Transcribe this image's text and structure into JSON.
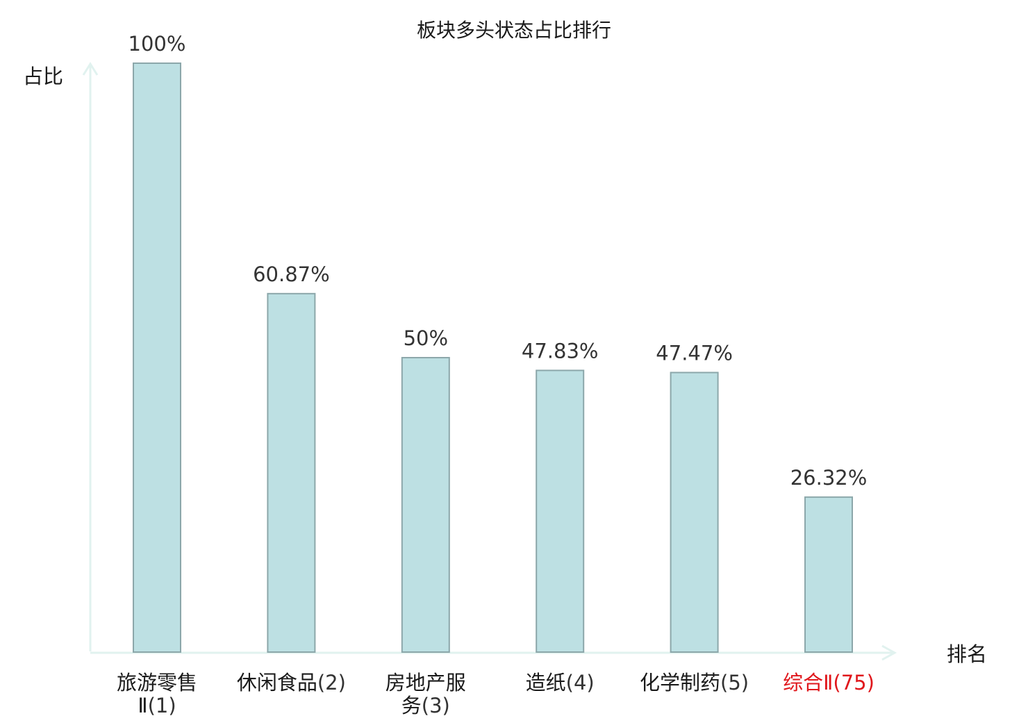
{
  "chart_data": {
    "type": "bar",
    "title": "板块多头状态占比排行",
    "ylabel": "占比",
    "xlabel": "排名",
    "ylim": [
      0,
      100
    ],
    "grid": false,
    "categories": [
      {
        "name": [
          "旅游零售",
          "Ⅱ"
        ],
        "rank": "(1)",
        "highlight": false
      },
      {
        "name": [
          "休闲食品"
        ],
        "rank": "(2)",
        "highlight": false
      },
      {
        "name": [
          "房地产服",
          "务"
        ],
        "rank": "(3)",
        "highlight": false
      },
      {
        "name": [
          "造纸"
        ],
        "rank": "(4)",
        "highlight": false
      },
      {
        "name": [
          "化学制药"
        ],
        "rank": "(5)",
        "highlight": false
      },
      {
        "name": [
          "综合Ⅱ"
        ],
        "rank": "(75)",
        "highlight": true
      }
    ],
    "values": [
      100,
      60.87,
      50,
      47.83,
      47.47,
      26.32
    ],
    "value_labels": [
      "100%",
      "60.87%",
      "50%",
      "47.83%",
      "47.47%",
      "26.32%"
    ],
    "colors": {
      "bar_fill": "#bde0e3",
      "bar_stroke": "#8ca7aa",
      "axis": "#e1f2ef",
      "text": "#1a1a1a",
      "value_text": "#333333",
      "rank_text": "#333333",
      "highlight": "#e0171c"
    }
  }
}
